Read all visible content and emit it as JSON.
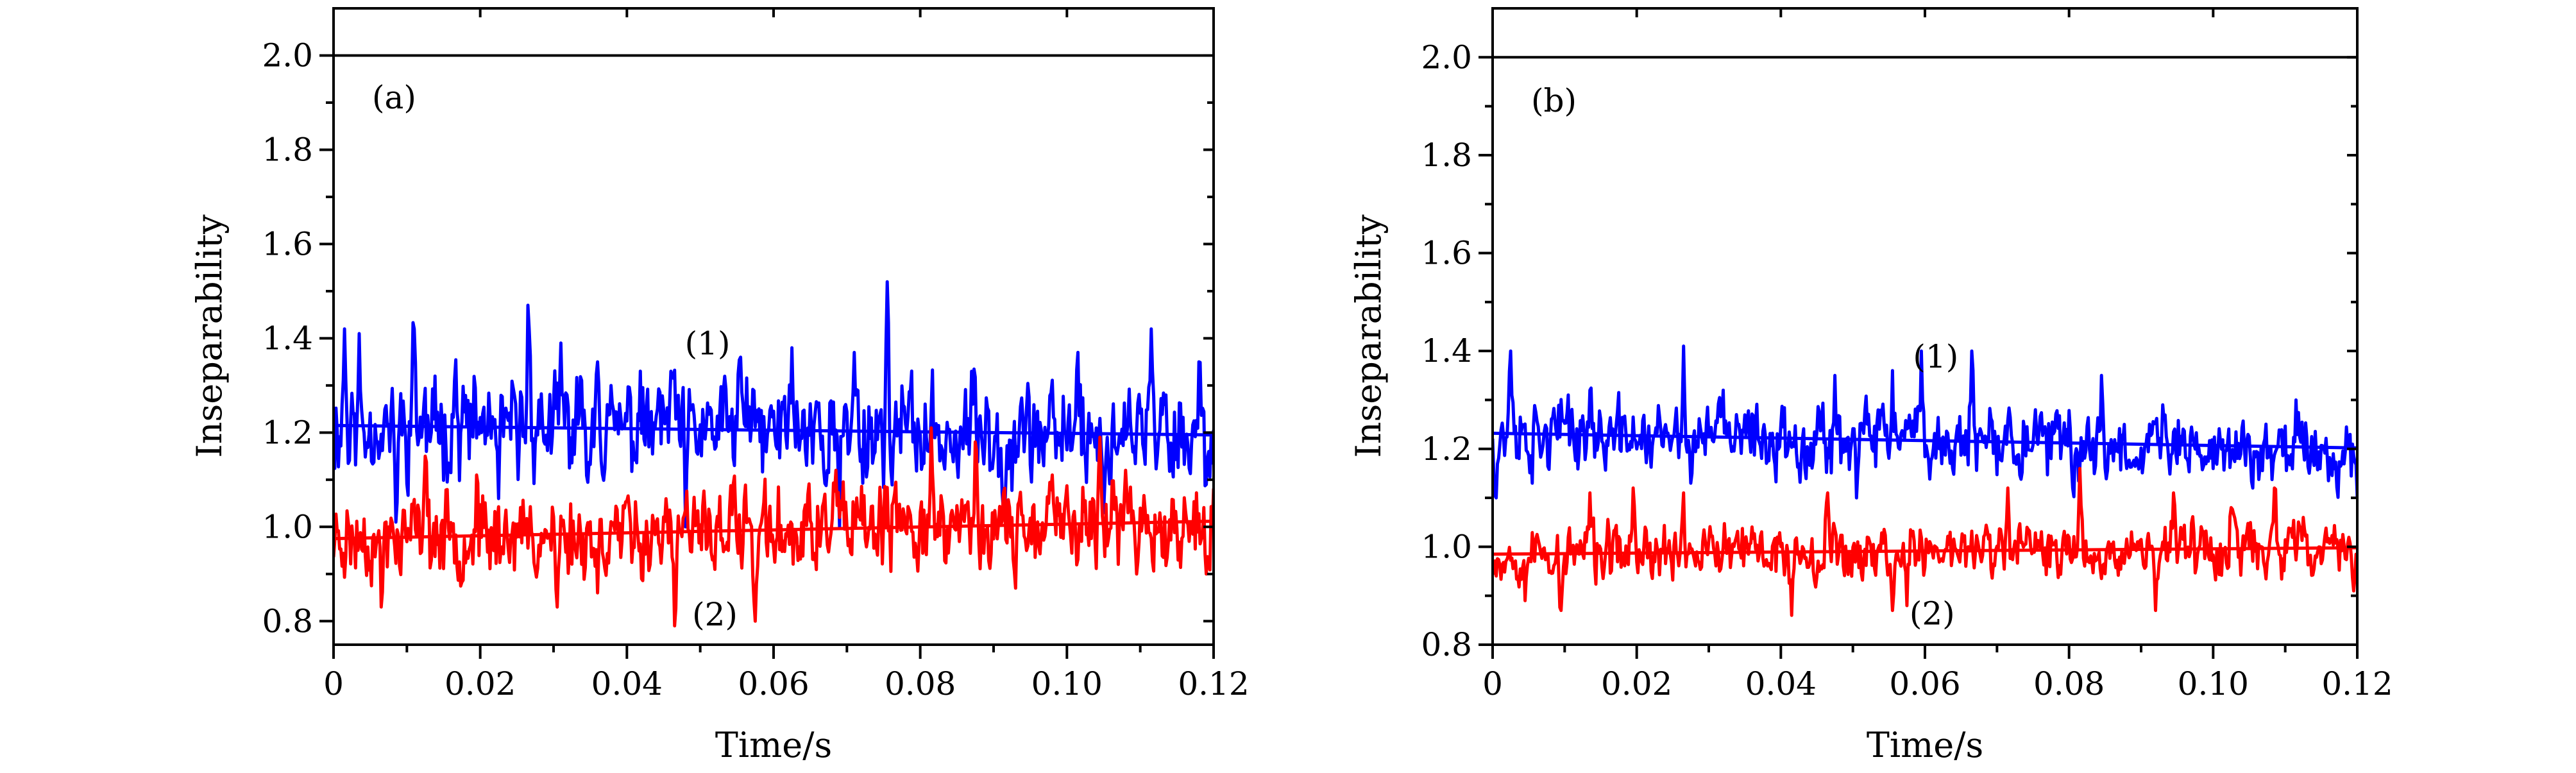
{
  "chart_data": [
    {
      "type": "line",
      "panel_label": "(a)",
      "xlabel": "Time/s",
      "ylabel": "Inseparability",
      "xlim": [
        0,
        0.12
      ],
      "ylim": [
        0.75,
        2.1
      ],
      "x_ticks": [
        0,
        0.02,
        0.04,
        0.06,
        0.08,
        0.1,
        0.12
      ],
      "x_tick_labels": [
        "0",
        "0.02",
        "0.04",
        "0.06",
        "0.08",
        "0.10",
        "0.12"
      ],
      "y_ticks": [
        0.8,
        1.0,
        1.2,
        1.4,
        1.6,
        1.8,
        2.0
      ],
      "y_tick_labels": [
        "0.8",
        "1.0",
        "1.2",
        "1.4",
        "1.6",
        "1.8",
        "2.0"
      ],
      "reference_line": {
        "y": 2.0,
        "color": "#000000"
      },
      "annotations": [
        {
          "text": "(1)",
          "x": 0.051,
          "y": 1.39
        },
        {
          "text": "(2)",
          "x": 0.052,
          "y": 0.815
        }
      ],
      "series": [
        {
          "label": "(1)",
          "color": "#0000ff",
          "noise_amp": 0.085,
          "seed": 11,
          "trend": [
            1.215,
            1.195
          ],
          "peaks": [
            [
              0.0015,
              1.42
            ],
            [
              0.0035,
              1.41
            ],
            [
              0.011,
              1.42
            ],
            [
              0.0165,
              1.31
            ],
            [
              0.0265,
              1.47
            ],
            [
              0.031,
              1.39
            ],
            [
              0.036,
              1.35
            ],
            [
              0.046,
              1.33
            ],
            [
              0.0555,
              1.36
            ],
            [
              0.0625,
              1.38
            ],
            [
              0.071,
              1.37
            ],
            [
              0.0755,
              1.52
            ],
            [
              0.087,
              1.33
            ],
            [
              0.1015,
              1.37
            ],
            [
              0.1115,
              1.42
            ],
            [
              0.118,
              1.35
            ]
          ],
          "dips": [
            [
              0.0085,
              1.01
            ],
            [
              0.0225,
              1.06
            ],
            [
              0.048,
              1.0
            ],
            [
              0.069,
              1.0
            ],
            [
              0.0915,
              1.02
            ],
            [
              0.105,
              1.03
            ],
            [
              0.119,
              1.09
            ]
          ],
          "fit": [
            [
              0,
              1.215
            ],
            [
              0.12,
              1.195
            ]
          ]
        },
        {
          "label": "(2)",
          "color": "#ff0000",
          "noise_amp": 0.07,
          "seed": 23,
          "trend": [
            0.975,
            1.01
          ],
          "peaks": [
            [
              0.0125,
              1.15
            ],
            [
              0.0195,
              1.11
            ],
            [
              0.0305,
              1.07
            ],
            [
              0.0545,
              1.09
            ],
            [
              0.0685,
              1.12
            ],
            [
              0.0815,
              1.21
            ],
            [
              0.0875,
              1.18
            ],
            [
              0.098,
              1.11
            ],
            [
              0.1045,
              1.19
            ],
            [
              0.108,
              1.12
            ]
          ],
          "dips": [
            [
              0.0065,
              0.83
            ],
            [
              0.0305,
              0.83
            ],
            [
              0.036,
              0.86
            ],
            [
              0.0465,
              0.79
            ],
            [
              0.0575,
              0.8
            ],
            [
              0.093,
              0.87
            ],
            [
              0.1095,
              0.9
            ],
            [
              0.119,
              0.9
            ]
          ],
          "fit": [
            [
              0,
              0.975
            ],
            [
              0.12,
              1.012
            ]
          ]
        }
      ]
    },
    {
      "type": "line",
      "panel_label": "(b)",
      "xlabel": "Time/s",
      "ylabel": "Inseparability",
      "xlim": [
        0,
        0.12
      ],
      "ylim": [
        0.8,
        2.1
      ],
      "x_ticks": [
        0,
        0.02,
        0.04,
        0.06,
        0.08,
        0.1,
        0.12
      ],
      "x_tick_labels": [
        "0",
        "0.02",
        "0.04",
        "0.06",
        "0.08",
        "0.10",
        "0.12"
      ],
      "y_ticks": [
        0.8,
        1.0,
        1.2,
        1.4,
        1.6,
        1.8,
        2.0
      ],
      "y_tick_labels": [
        "0.8",
        "1.0",
        "1.2",
        "1.4",
        "1.6",
        "1.8",
        "2.0"
      ],
      "reference_line": {
        "y": 2.0,
        "color": "#000000"
      },
      "annotations": [
        {
          "text": "(1)",
          "x": 0.0615,
          "y": 1.39
        },
        {
          "text": "(2)",
          "x": 0.061,
          "y": 0.865
        }
      ],
      "series": [
        {
          "label": "(1)",
          "color": "#0000ff",
          "noise_amp": 0.055,
          "seed": 37,
          "trend": [
            1.23,
            1.2
          ],
          "peaks": [
            [
              0.0025,
              1.4
            ],
            [
              0.0105,
              1.31
            ],
            [
              0.0135,
              1.32
            ],
            [
              0.0265,
              1.41
            ],
            [
              0.032,
              1.32
            ],
            [
              0.0475,
              1.35
            ],
            [
              0.0555,
              1.36
            ],
            [
              0.0595,
              1.4
            ],
            [
              0.0665,
              1.4
            ],
            [
              0.0845,
              1.35
            ],
            [
              0.093,
              1.29
            ],
            [
              0.1115,
              1.3
            ]
          ],
          "dips": [
            [
              0.0005,
              1.1
            ],
            [
              0.0055,
              1.13
            ],
            [
              0.0275,
              1.13
            ],
            [
              0.0505,
              1.1
            ],
            [
              0.0805,
              1.12
            ],
            [
              0.1055,
              1.12
            ],
            [
              0.12,
              1.1
            ]
          ],
          "fit": [
            [
              0,
              1.232
            ],
            [
              0.12,
              1.202
            ]
          ]
        },
        {
          "label": "(2)",
          "color": "#ff0000",
          "noise_amp": 0.045,
          "seed": 53,
          "trend": [
            0.985,
            0.998
          ],
          "peaks": [
            [
              0.0135,
              1.11
            ],
            [
              0.0195,
              1.12
            ],
            [
              0.0265,
              1.11
            ],
            [
              0.0465,
              1.11
            ],
            [
              0.0715,
              1.12
            ],
            [
              0.0815,
              1.16
            ],
            [
              0.0945,
              1.11
            ],
            [
              0.1025,
              1.08
            ],
            [
              0.1085,
              1.12
            ]
          ],
          "dips": [
            [
              0.0045,
              0.89
            ],
            [
              0.0095,
              0.87
            ],
            [
              0.0415,
              0.86
            ],
            [
              0.0555,
              0.87
            ],
            [
              0.0575,
              0.88
            ],
            [
              0.092,
              0.87
            ],
            [
              0.1195,
              0.91
            ]
          ],
          "fit": [
            [
              0,
              0.985
            ],
            [
              0.12,
              0.998
            ]
          ]
        }
      ]
    }
  ]
}
